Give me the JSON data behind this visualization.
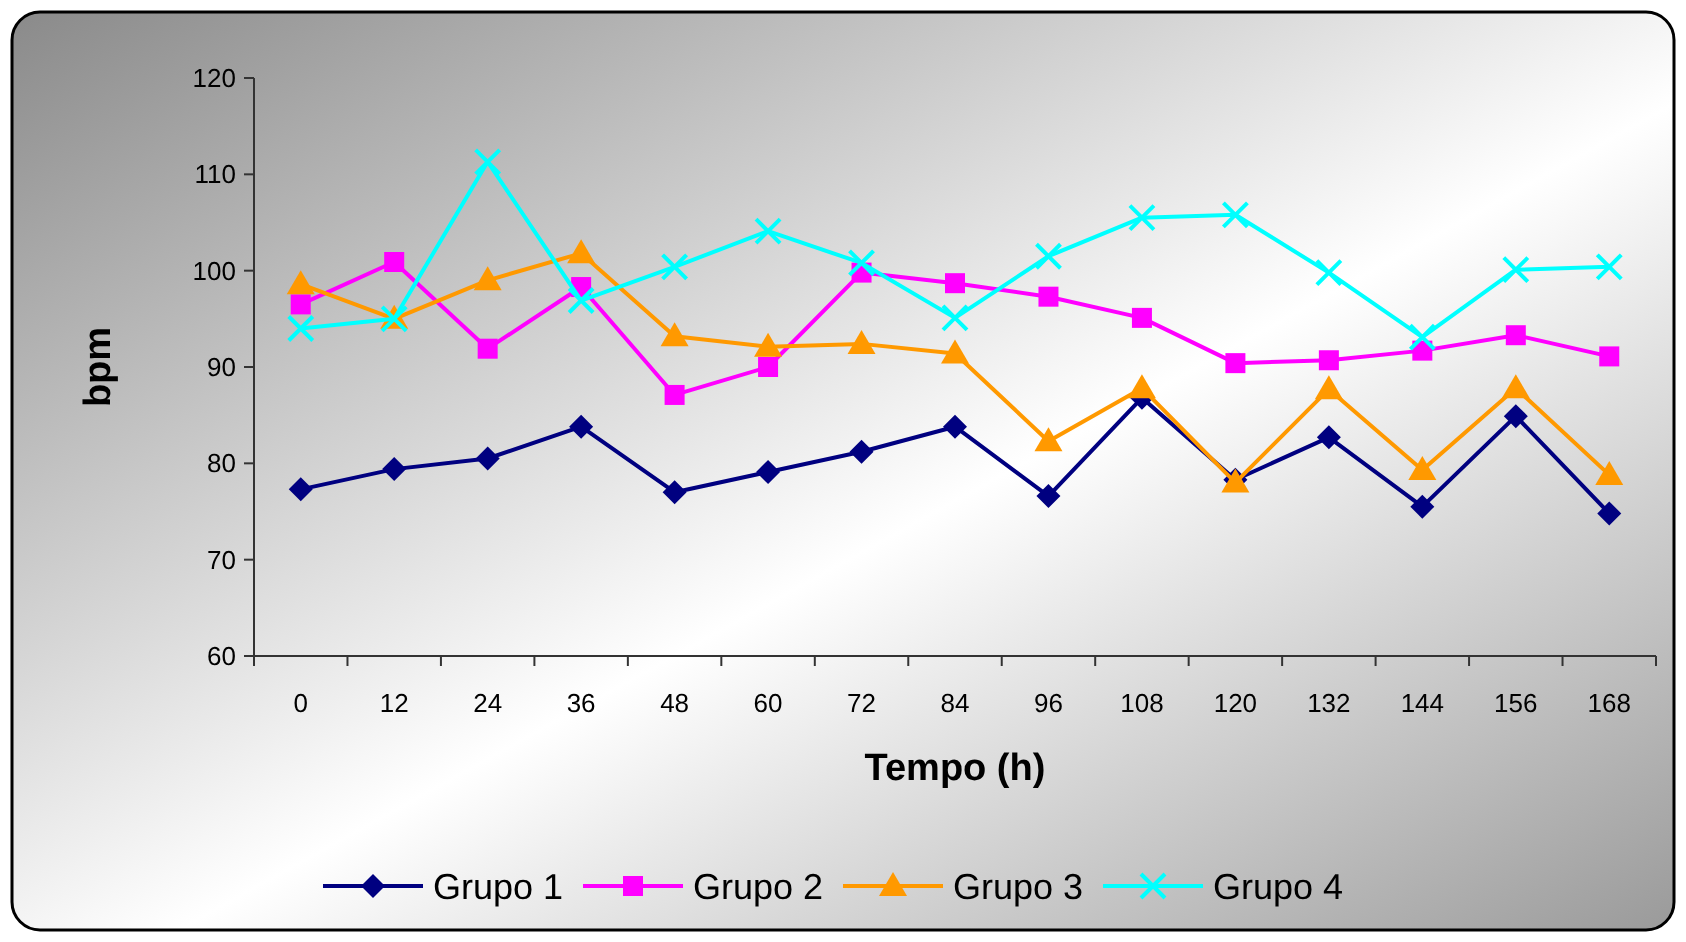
{
  "chart_data": {
    "type": "line",
    "xlabel": "Tempo (h)",
    "ylabel": "bpm",
    "categories": [
      "0",
      "12",
      "24",
      "36",
      "48",
      "60",
      "72",
      "84",
      "96",
      "108",
      "120",
      "132",
      "144",
      "156",
      "168"
    ],
    "ylim": [
      60,
      120
    ],
    "yticks": [
      60,
      70,
      80,
      90,
      100,
      110,
      120
    ],
    "grid": false,
    "legend": "bottom",
    "series": [
      {
        "name": "Grupo 1",
        "color": "#000080",
        "marker": "diamond",
        "values": [
          77.3,
          79.4,
          80.5,
          83.8,
          77,
          79.1,
          81.2,
          83.8,
          76.6,
          86.8,
          78.3,
          82.7,
          75.5,
          84.9,
          74.8
        ]
      },
      {
        "name": "Grupo 2",
        "color": "#ff00ff",
        "marker": "square",
        "values": [
          96.5,
          100.9,
          91.9,
          98.3,
          87.1,
          90,
          99.8,
          98.7,
          97.3,
          95.1,
          90.4,
          90.7,
          91.7,
          93.3,
          91.1
        ]
      },
      {
        "name": "Grupo 3",
        "color": "#ff9900",
        "marker": "triangle",
        "values": [
          98.6,
          95,
          99,
          101.8,
          93.2,
          92.1,
          92.4,
          91.4,
          82.3,
          87.8,
          78,
          87.7,
          79.3,
          87.8,
          78.8
        ]
      },
      {
        "name": "Grupo 4",
        "color": "#00ffff",
        "marker": "cross",
        "values": [
          94,
          95,
          111.3,
          96.9,
          100.4,
          104.1,
          100.8,
          95.1,
          101.5,
          105.5,
          105.8,
          99.8,
          93.1,
          100.1,
          100.4
        ]
      }
    ]
  }
}
